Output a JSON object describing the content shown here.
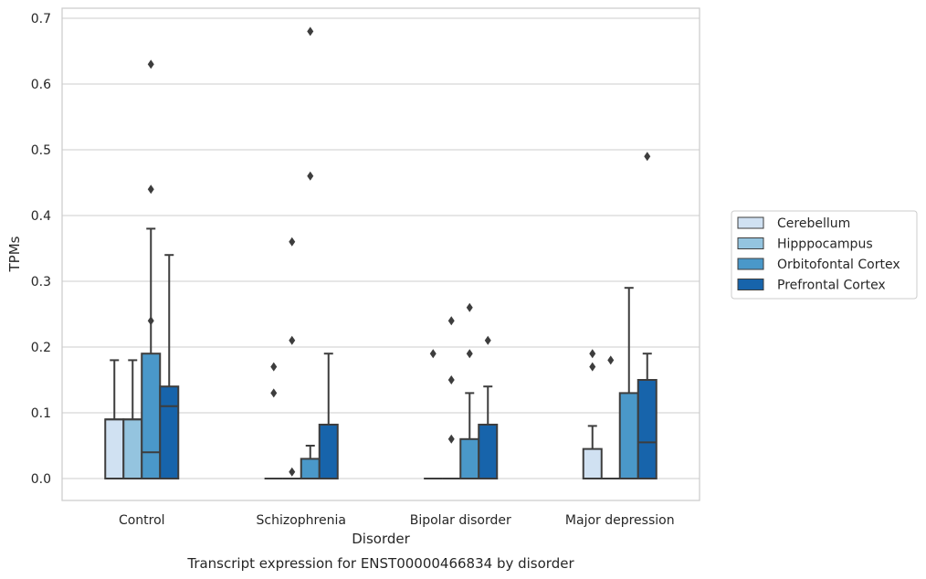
{
  "chart_data": {
    "type": "box",
    "caption": "Transcript expression for ENST00000466834 by disorder",
    "xlabel": "Disorder",
    "ylabel": "TPMs",
    "ylim": [
      -0.033,
      0.715
    ],
    "yticks": [
      0.0,
      0.1,
      0.2,
      0.3,
      0.4,
      0.5,
      0.6,
      0.7
    ],
    "ytick_labels": [
      "0.0",
      "0.1",
      "0.2",
      "0.3",
      "0.4",
      "0.5",
      "0.6",
      "0.7"
    ],
    "categories": [
      "Control",
      "Schizophrenia",
      "Bipolar disorder",
      "Major depression"
    ],
    "grid": "horizontal",
    "legend_position": "right",
    "series": [
      {
        "name": "Cerebellum",
        "color": "#d0e1f2",
        "boxes": [
          {
            "min": 0.0,
            "q1": 0.0,
            "median": 0.09,
            "q3": 0.09,
            "max": 0.18,
            "outliers": []
          },
          {
            "min": 0.0,
            "q1": 0.0,
            "median": 0.0,
            "q3": 0.0,
            "max": 0.0,
            "outliers": [
              0.17,
              0.13
            ]
          },
          {
            "min": 0.0,
            "q1": 0.0,
            "median": 0.0,
            "q3": 0.0,
            "max": 0.0,
            "outliers": [
              0.19
            ]
          },
          {
            "min": 0.0,
            "q1": 0.0,
            "median": 0.0,
            "q3": 0.045,
            "max": 0.08,
            "outliers": [
              0.19,
              0.17
            ]
          }
        ]
      },
      {
        "name": "Hipppocampus",
        "color": "#94c4df",
        "boxes": [
          {
            "min": 0.0,
            "q1": 0.0,
            "median": 0.09,
            "q3": 0.09,
            "max": 0.18,
            "outliers": []
          },
          {
            "min": 0.0,
            "q1": 0.0,
            "median": 0.0,
            "q3": 0.0,
            "max": 0.0,
            "outliers": [
              0.36,
              0.21,
              0.01
            ]
          },
          {
            "min": 0.0,
            "q1": 0.0,
            "median": 0.0,
            "q3": 0.0,
            "max": 0.0,
            "outliers": [
              0.24,
              0.15,
              0.06
            ]
          },
          {
            "min": 0.0,
            "q1": 0.0,
            "median": 0.0,
            "q3": 0.0,
            "max": 0.0,
            "outliers": [
              0.18
            ]
          }
        ]
      },
      {
        "name": "Orbitofontal Cortex",
        "color": "#4a98c9",
        "boxes": [
          {
            "min": 0.0,
            "q1": 0.0,
            "median": 0.04,
            "q3": 0.19,
            "max": 0.38,
            "outliers": [
              0.63,
              0.44,
              0.24
            ]
          },
          {
            "min": 0.0,
            "q1": 0.0,
            "median": 0.0,
            "q3": 0.03,
            "max": 0.05,
            "outliers": [
              0.68,
              0.46
            ]
          },
          {
            "min": 0.0,
            "q1": 0.0,
            "median": 0.0,
            "q3": 0.06,
            "max": 0.13,
            "outliers": [
              0.26,
              0.19
            ]
          },
          {
            "min": 0.0,
            "q1": 0.0,
            "median": 0.0,
            "q3": 0.13,
            "max": 0.29,
            "outliers": []
          }
        ]
      },
      {
        "name": "Prefrontal Cortex",
        "color": "#1764ab",
        "boxes": [
          {
            "min": 0.0,
            "q1": 0.0,
            "median": 0.11,
            "q3": 0.14,
            "max": 0.34,
            "outliers": []
          },
          {
            "min": 0.0,
            "q1": 0.0,
            "median": 0.0,
            "q3": 0.082,
            "max": 0.19,
            "outliers": []
          },
          {
            "min": 0.0,
            "q1": 0.0,
            "median": 0.0,
            "q3": 0.082,
            "max": 0.14,
            "outliers": [
              0.21
            ]
          },
          {
            "min": 0.0,
            "q1": 0.0,
            "median": 0.055,
            "q3": 0.15,
            "max": 0.19,
            "outliers": [
              0.49
            ]
          }
        ]
      }
    ]
  },
  "style": {
    "line_color": "#3d3d3d",
    "grid_color": "#cccccc",
    "frame_color": "#cccccc",
    "background": "#ffffff"
  }
}
